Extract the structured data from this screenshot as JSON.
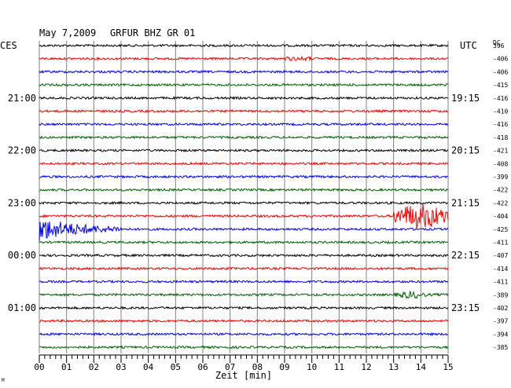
{
  "header": {
    "date": "May 7,2009",
    "station": "GRFUR BHZ GR 01",
    "left_tz": "CES",
    "right_tz": "UTC",
    "dc_label": "DC"
  },
  "footer": {
    "xlabel": "Zeit [min]",
    "corner_mark": "M"
  },
  "chart_data": {
    "type": "line",
    "subtype": "helicorder",
    "title": "May 7,2009   GRFUR BHZ GR 01",
    "xlabel": "Zeit [min]",
    "x_ticks": [
      "00",
      "01",
      "02",
      "03",
      "04",
      "05",
      "06",
      "07",
      "08",
      "09",
      "10",
      "11",
      "12",
      "13",
      "14",
      "15"
    ],
    "xlim": [
      0,
      15
    ],
    "trace_colors": [
      "#000000",
      "#ff0000",
      "#0000ff",
      "#006400"
    ],
    "left_time_labels": [
      {
        "trace_index": 4,
        "label": "21:00"
      },
      {
        "trace_index": 8,
        "label": "22:00"
      },
      {
        "trace_index": 12,
        "label": "23:00"
      },
      {
        "trace_index": 16,
        "label": "00:00"
      },
      {
        "trace_index": 20,
        "label": "01:00"
      }
    ],
    "right_time_labels": [
      {
        "trace_index": 4,
        "label": "19:15"
      },
      {
        "trace_index": 8,
        "label": "20:15"
      },
      {
        "trace_index": 12,
        "label": "21:15"
      },
      {
        "trace_index": 16,
        "label": "22:15"
      },
      {
        "trace_index": 20,
        "label": "23:15"
      }
    ],
    "dc_offsets": [
      "396",
      "-406",
      "-406",
      "-415",
      "-416",
      "-410",
      "-416",
      "-418",
      "-421",
      "-408",
      "-399",
      "-422",
      "-422",
      "-404",
      "-425",
      "-411",
      "-407",
      "-414",
      "-411",
      "-389",
      "-402",
      "-397",
      "-394",
      "-385"
    ],
    "events": [
      {
        "trace_index": 13,
        "start_min": 13.0,
        "end_min": 15.0,
        "amplitude": "large"
      },
      {
        "trace_index": 14,
        "start_min": 0.0,
        "end_min": 3.0,
        "amplitude": "large",
        "decay": true
      },
      {
        "trace_index": 19,
        "start_min": 13.0,
        "end_min": 15.0,
        "amplitude": "small"
      },
      {
        "trace_index": 1,
        "start_min": 9.0,
        "end_min": 10.0,
        "amplitude": "slight"
      }
    ],
    "grid": true
  }
}
